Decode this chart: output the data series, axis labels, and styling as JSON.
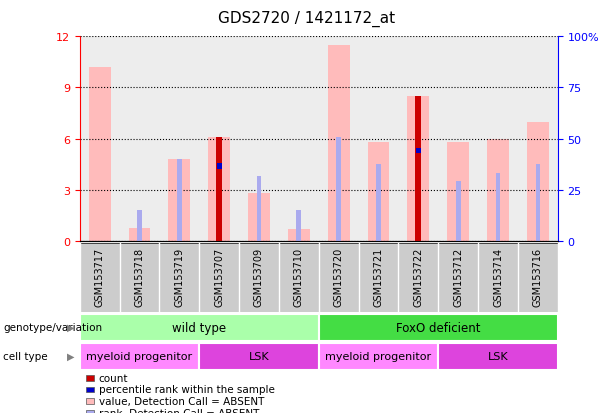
{
  "title": "GDS2720 / 1421172_at",
  "samples": [
    "GSM153717",
    "GSM153718",
    "GSM153719",
    "GSM153707",
    "GSM153709",
    "GSM153710",
    "GSM153720",
    "GSM153721",
    "GSM153722",
    "GSM153712",
    "GSM153714",
    "GSM153716"
  ],
  "value_absent": [
    10.2,
    0.8,
    4.8,
    6.1,
    2.8,
    0.7,
    11.5,
    5.8,
    8.5,
    5.8,
    6.0,
    7.0
  ],
  "rank_absent": [
    null,
    1.8,
    4.8,
    null,
    3.8,
    1.8,
    6.1,
    4.5,
    null,
    3.5,
    4.0,
    4.5
  ],
  "count": [
    null,
    null,
    null,
    6.1,
    null,
    null,
    null,
    null,
    8.5,
    null,
    null,
    null
  ],
  "percentile_rank": [
    null,
    null,
    null,
    4.4,
    null,
    null,
    null,
    null,
    5.3,
    null,
    null,
    null
  ],
  "ylim_left": [
    0,
    12
  ],
  "ylim_right": [
    0,
    100
  ],
  "yticks_left": [
    0,
    3,
    6,
    9,
    12
  ],
  "yticks_right": [
    0,
    25,
    50,
    75,
    100
  ],
  "ytick_labels_right": [
    "0",
    "25",
    "50",
    "75",
    "100%"
  ],
  "genotype_groups": [
    {
      "label": "wild type",
      "start": 0,
      "end": 6,
      "color": "#aaffaa"
    },
    {
      "label": "FoxO deficient",
      "start": 6,
      "end": 12,
      "color": "#44dd44"
    }
  ],
  "cell_type_groups": [
    {
      "label": "myeloid progenitor",
      "start": 0,
      "end": 3,
      "color": "#ff88ff"
    },
    {
      "label": "LSK",
      "start": 3,
      "end": 6,
      "color": "#dd44dd"
    },
    {
      "label": "myeloid progenitor",
      "start": 6,
      "end": 9,
      "color": "#ff88ff"
    },
    {
      "label": "LSK",
      "start": 9,
      "end": 12,
      "color": "#dd44dd"
    }
  ],
  "color_value_absent": "#ffbbbb",
  "color_rank_absent": "#aaaaee",
  "color_count": "#cc0000",
  "color_percentile": "#0000cc",
  "legend_items": [
    {
      "label": "count",
      "color": "#cc0000"
    },
    {
      "label": "percentile rank within the sample",
      "color": "#0000cc"
    },
    {
      "label": "value, Detection Call = ABSENT",
      "color": "#ffbbbb"
    },
    {
      "label": "rank, Detection Call = ABSENT",
      "color": "#aaaaee"
    }
  ],
  "bg_color": "#cccccc"
}
